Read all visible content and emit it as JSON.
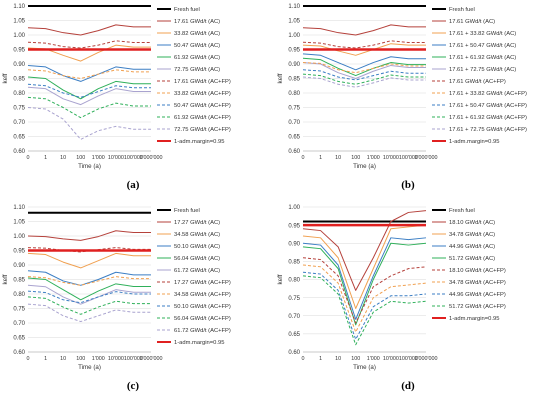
{
  "figure": {
    "panel_labels": [
      "(a)",
      "(b)",
      "(c)",
      "(d)"
    ]
  },
  "chart_data": [
    {
      "type": "line",
      "panel": "(a)",
      "xlabel": "Time (a)",
      "ylabel": "keff",
      "xscale": "log",
      "x_tick_values": [
        0,
        1,
        10,
        100,
        1000,
        10000,
        100000,
        1000000
      ],
      "x_tick_labels": [
        "0",
        "1",
        "10",
        "100",
        "1'000",
        "10'000",
        "100'000",
        "1'000'000"
      ],
      "y_tick_labels": [
        "0.60",
        "0.65",
        "0.70",
        "0.75",
        "0.80",
        "0.85",
        "0.90",
        "0.95",
        "1.00",
        "1.05",
        "1.10"
      ],
      "ylim": [
        0.6,
        1.1
      ],
      "legend_position": "right",
      "x": [
        0,
        1,
        10,
        100,
        1000,
        10000,
        100000,
        1000000
      ],
      "series": [
        {
          "name": "Fresh fuel",
          "color": "#000000",
          "dash": "solid",
          "width": 2,
          "values": [
            1.1,
            1.1,
            1.1,
            1.1,
            1.1,
            1.1,
            1.1,
            1.1
          ]
        },
        {
          "name": "17.61 GWd/t (AC)",
          "color": "#b5413b",
          "dash": "solid",
          "width": 1,
          "values": [
            1.025,
            1.022,
            1.008,
            1.0,
            1.015,
            1.035,
            1.028,
            1.028
          ]
        },
        {
          "name": "33.82 GWd/t (AC)",
          "color": "#f0a050",
          "dash": "solid",
          "width": 1,
          "values": [
            0.955,
            0.952,
            0.93,
            0.91,
            0.94,
            0.965,
            0.958,
            0.958
          ]
        },
        {
          "name": "50.47 GWd/t (AC)",
          "color": "#3b7ec4",
          "dash": "solid",
          "width": 1,
          "values": [
            0.895,
            0.89,
            0.86,
            0.84,
            0.865,
            0.89,
            0.882,
            0.882
          ]
        },
        {
          "name": "61.92 GWd/t (AC)",
          "color": "#2fb05a",
          "dash": "solid",
          "width": 1,
          "values": [
            0.855,
            0.85,
            0.81,
            0.78,
            0.815,
            0.84,
            0.832,
            0.832
          ]
        },
        {
          "name": "72.75 GWd/t (AC)",
          "color": "#a9a3cf",
          "dash": "solid",
          "width": 1,
          "values": [
            0.82,
            0.815,
            0.78,
            0.76,
            0.79,
            0.815,
            0.805,
            0.805
          ]
        },
        {
          "name": "17.61 GWd/t (AC+FP)",
          "color": "#b5413b",
          "dash": "dashed",
          "width": 1,
          "values": [
            0.975,
            0.972,
            0.96,
            0.955,
            0.965,
            0.98,
            0.974,
            0.974
          ]
        },
        {
          "name": "33.82 GWd/t (AC+FP)",
          "color": "#f0a050",
          "dash": "dashed",
          "width": 1,
          "values": [
            0.88,
            0.876,
            0.86,
            0.85,
            0.865,
            0.88,
            0.873,
            0.873
          ]
        },
        {
          "name": "50.47 GWd/t (AC+FP)",
          "color": "#3b7ec4",
          "dash": "dashed",
          "width": 1,
          "values": [
            0.83,
            0.825,
            0.8,
            0.785,
            0.805,
            0.825,
            0.818,
            0.818
          ]
        },
        {
          "name": "61.92 GWd/t (AC+FP)",
          "color": "#2fb05a",
          "dash": "dashed",
          "width": 1,
          "values": [
            0.785,
            0.78,
            0.75,
            0.715,
            0.745,
            0.765,
            0.755,
            0.755
          ]
        },
        {
          "name": "72.75 GWd/t (AC+FP)",
          "color": "#a9a3cf",
          "dash": "dashed",
          "width": 1,
          "values": [
            0.75,
            0.745,
            0.71,
            0.64,
            0.67,
            0.685,
            0.675,
            0.675
          ]
        },
        {
          "name": "1-adm.margin=0.95",
          "color": "#e02020",
          "dash": "solid",
          "width": 2.5,
          "values": [
            0.95,
            0.95,
            0.95,
            0.95,
            0.95,
            0.95,
            0.95,
            0.95
          ]
        }
      ]
    },
    {
      "type": "line",
      "panel": "(b)",
      "xlabel": "Time (a)",
      "ylabel": "keff",
      "xscale": "log",
      "x_tick_values": [
        0,
        1,
        10,
        100,
        1000,
        10000,
        100000,
        1000000
      ],
      "x_tick_labels": [
        "0",
        "1",
        "10",
        "100",
        "1'000",
        "10'000",
        "100'000",
        "1'000'000"
      ],
      "y_tick_labels": [
        "0.60",
        "0.65",
        "0.70",
        "0.75",
        "0.80",
        "0.85",
        "0.90",
        "0.95",
        "1.00",
        "1.05",
        "1.10"
      ],
      "ylim": [
        0.6,
        1.1
      ],
      "legend_position": "right",
      "x": [
        0,
        1,
        10,
        100,
        1000,
        10000,
        100000,
        1000000
      ],
      "series": [
        {
          "name": "Fresh fuel",
          "color": "#000000",
          "dash": "solid",
          "width": 2,
          "values": [
            1.1,
            1.1,
            1.1,
            1.1,
            1.1,
            1.1,
            1.1,
            1.1
          ]
        },
        {
          "name": "17.61 GWd/t (AC)",
          "color": "#b5413b",
          "dash": "solid",
          "width": 1,
          "values": [
            1.025,
            1.022,
            1.008,
            1.0,
            1.015,
            1.035,
            1.028,
            1.028
          ]
        },
        {
          "name": "17.61 + 33.82 GWd/t (AC)",
          "color": "#f0a050",
          "dash": "solid",
          "width": 1,
          "values": [
            0.965,
            0.962,
            0.945,
            0.93,
            0.95,
            0.97,
            0.965,
            0.965
          ]
        },
        {
          "name": "17.61 + 50.47 GWd/t (AC)",
          "color": "#3b7ec4",
          "dash": "solid",
          "width": 1,
          "values": [
            0.935,
            0.93,
            0.905,
            0.88,
            0.905,
            0.925,
            0.918,
            0.918
          ]
        },
        {
          "name": "17.61 + 61.92 GWd/t (AC)",
          "color": "#2fb05a",
          "dash": "solid",
          "width": 1,
          "values": [
            0.92,
            0.915,
            0.885,
            0.86,
            0.885,
            0.905,
            0.898,
            0.898
          ]
        },
        {
          "name": "17.61 + 72.75 GWd/t (AC)",
          "color": "#a9a3cf",
          "dash": "solid",
          "width": 1,
          "values": [
            0.905,
            0.9,
            0.87,
            0.85,
            0.875,
            0.895,
            0.888,
            0.888
          ]
        },
        {
          "name": "17.61 GWd/t (AC+FP)",
          "color": "#b5413b",
          "dash": "dashed",
          "width": 1,
          "values": [
            0.975,
            0.972,
            0.96,
            0.955,
            0.965,
            0.98,
            0.974,
            0.974
          ]
        },
        {
          "name": "17.61 + 33.82 GWd/t (AC+FP)",
          "color": "#f0a050",
          "dash": "dashed",
          "width": 1,
          "values": [
            0.905,
            0.902,
            0.88,
            0.87,
            0.885,
            0.9,
            0.893,
            0.893
          ]
        },
        {
          "name": "17.61 + 50.47 GWd/t (AC+FP)",
          "color": "#3b7ec4",
          "dash": "dashed",
          "width": 1,
          "values": [
            0.88,
            0.876,
            0.855,
            0.845,
            0.86,
            0.875,
            0.868,
            0.868
          ]
        },
        {
          "name": "17.61 + 61.92 GWd/t (AC+FP)",
          "color": "#2fb05a",
          "dash": "dashed",
          "width": 1,
          "values": [
            0.865,
            0.86,
            0.84,
            0.83,
            0.845,
            0.862,
            0.855,
            0.855
          ]
        },
        {
          "name": "17.61 + 72.75 GWd/t (AC+FP)",
          "color": "#a9a3cf",
          "dash": "dashed",
          "width": 1,
          "values": [
            0.855,
            0.85,
            0.83,
            0.82,
            0.835,
            0.852,
            0.845,
            0.845
          ]
        },
        {
          "name": "1-adm.margin=0.95",
          "color": "#e02020",
          "dash": "solid",
          "width": 2.5,
          "values": [
            0.95,
            0.95,
            0.95,
            0.95,
            0.95,
            0.95,
            0.95,
            0.95
          ]
        }
      ]
    },
    {
      "type": "line",
      "panel": "(c)",
      "xlabel": "Time (a)",
      "ylabel": "keff",
      "xscale": "log",
      "x_tick_values": [
        0,
        1,
        10,
        100,
        1000,
        10000,
        100000,
        1000000
      ],
      "x_tick_labels": [
        "0",
        "1",
        "10",
        "100",
        "1'000",
        "10'000",
        "100'000",
        "1'000'000"
      ],
      "y_tick_labels": [
        "0.60",
        "0.65",
        "0.70",
        "0.75",
        "0.80",
        "0.85",
        "0.90",
        "0.95",
        "1.00",
        "1.05",
        "1.10"
      ],
      "ylim": [
        0.6,
        1.1
      ],
      "legend_position": "right",
      "x": [
        0,
        1,
        10,
        100,
        1000,
        10000,
        100000,
        1000000
      ],
      "series": [
        {
          "name": "Fresh fuel",
          "color": "#000000",
          "dash": "solid",
          "width": 2,
          "values": [
            1.08,
            1.08,
            1.08,
            1.08,
            1.08,
            1.08,
            1.08,
            1.08
          ]
        },
        {
          "name": "17.27 GWd/t (AC)",
          "color": "#b5413b",
          "dash": "solid",
          "width": 1,
          "values": [
            1.0,
            0.998,
            0.99,
            0.985,
            0.998,
            1.018,
            1.012,
            1.012
          ]
        },
        {
          "name": "34.58 GWd/t (AC)",
          "color": "#f0a050",
          "dash": "solid",
          "width": 1,
          "values": [
            0.94,
            0.936,
            0.91,
            0.89,
            0.915,
            0.94,
            0.932,
            0.932
          ]
        },
        {
          "name": "50.10 GWd/t (AC)",
          "color": "#3b7ec4",
          "dash": "solid",
          "width": 1,
          "values": [
            0.88,
            0.875,
            0.845,
            0.83,
            0.85,
            0.875,
            0.866,
            0.866
          ]
        },
        {
          "name": "56.04 GWd/t (AC)",
          "color": "#2fb05a",
          "dash": "solid",
          "width": 1,
          "values": [
            0.855,
            0.85,
            0.815,
            0.78,
            0.81,
            0.835,
            0.826,
            0.826
          ]
        },
        {
          "name": "61.72 GWd/t (AC)",
          "color": "#a9a3cf",
          "dash": "solid",
          "width": 1,
          "values": [
            0.83,
            0.825,
            0.79,
            0.765,
            0.79,
            0.815,
            0.806,
            0.806
          ]
        },
        {
          "name": "17.27 GWd/t (AC+FP)",
          "color": "#b5413b",
          "dash": "dashed",
          "width": 1,
          "values": [
            0.96,
            0.958,
            0.95,
            0.945,
            0.953,
            0.96,
            0.954,
            0.954
          ]
        },
        {
          "name": "34.58 GWd/t (AC+FP)",
          "color": "#f0a050",
          "dash": "dashed",
          "width": 1,
          "values": [
            0.86,
            0.856,
            0.84,
            0.83,
            0.845,
            0.86,
            0.853,
            0.853
          ]
        },
        {
          "name": "50.10 GWd/t (AC+FP)",
          "color": "#3b7ec4",
          "dash": "dashed",
          "width": 1,
          "values": [
            0.81,
            0.805,
            0.78,
            0.77,
            0.79,
            0.808,
            0.8,
            0.8
          ]
        },
        {
          "name": "56.04 GWd/t (AC+FP)",
          "color": "#2fb05a",
          "dash": "dashed",
          "width": 1,
          "values": [
            0.79,
            0.785,
            0.755,
            0.73,
            0.755,
            0.775,
            0.767,
            0.767
          ]
        },
        {
          "name": "61.72 GWd/t (AC+FP)",
          "color": "#a9a3cf",
          "dash": "dashed",
          "width": 1,
          "values": [
            0.765,
            0.76,
            0.725,
            0.705,
            0.725,
            0.745,
            0.737,
            0.737
          ]
        },
        {
          "name": "1-adm.margin=0.95",
          "color": "#e02020",
          "dash": "solid",
          "width": 2.5,
          "values": [
            0.95,
            0.95,
            0.95,
            0.95,
            0.95,
            0.95,
            0.95,
            0.95
          ]
        }
      ]
    },
    {
      "type": "line",
      "panel": "(d)",
      "xlabel": "Time (a)",
      "ylabel": "keff",
      "xscale": "log",
      "x_tick_values": [
        0,
        1,
        10,
        100,
        1000,
        10000,
        100000,
        1000000
      ],
      "x_tick_labels": [
        "0",
        "1",
        "10",
        "100",
        "1'000",
        "10'000",
        "100'000",
        "1'000'000"
      ],
      "y_tick_labels": [
        "0.60",
        "0.65",
        "0.70",
        "0.75",
        "0.80",
        "0.85",
        "0.90",
        "0.95",
        "1.00"
      ],
      "ylim": [
        0.6,
        1.0
      ],
      "legend_position": "right",
      "x": [
        0,
        1,
        10,
        100,
        1000,
        10000,
        100000,
        1000000
      ],
      "series": [
        {
          "name": "Fresh fuel",
          "color": "#000000",
          "dash": "solid",
          "width": 2,
          "values": [
            0.96,
            0.96,
            0.96,
            0.96,
            0.96,
            0.96,
            0.96,
            0.96
          ]
        },
        {
          "name": "18.10 GWd/t (AC)",
          "color": "#b5413b",
          "dash": "solid",
          "width": 1,
          "values": [
            0.94,
            0.935,
            0.89,
            0.77,
            0.86,
            0.96,
            0.985,
            0.99
          ]
        },
        {
          "name": "34.78 GWd/t (AC)",
          "color": "#f0a050",
          "dash": "solid",
          "width": 1,
          "values": [
            0.92,
            0.915,
            0.86,
            0.72,
            0.83,
            0.94,
            0.945,
            0.95
          ]
        },
        {
          "name": "44.96 GWd/t (AC)",
          "color": "#3b7ec4",
          "dash": "solid",
          "width": 1,
          "values": [
            0.9,
            0.895,
            0.84,
            0.69,
            0.81,
            0.915,
            0.91,
            0.915
          ]
        },
        {
          "name": "51.72 GWd/t (AC)",
          "color": "#2fb05a",
          "dash": "solid",
          "width": 1,
          "values": [
            0.89,
            0.885,
            0.83,
            0.675,
            0.8,
            0.9,
            0.895,
            0.9
          ]
        },
        {
          "name": "18.10 GWd/t (AC+FP)",
          "color": "#b5413b",
          "dash": "dashed",
          "width": 1,
          "values": [
            0.86,
            0.855,
            0.81,
            0.68,
            0.78,
            0.81,
            0.83,
            0.835
          ]
        },
        {
          "name": "34.78 GWd/t (AC+FP)",
          "color": "#f0a050",
          "dash": "dashed",
          "width": 1,
          "values": [
            0.84,
            0.835,
            0.79,
            0.655,
            0.75,
            0.78,
            0.785,
            0.79
          ]
        },
        {
          "name": "44.96 GWd/t (AC+FP)",
          "color": "#3b7ec4",
          "dash": "dashed",
          "width": 1,
          "values": [
            0.82,
            0.815,
            0.77,
            0.635,
            0.725,
            0.755,
            0.755,
            0.76
          ]
        },
        {
          "name": "51.72 GWd/t (AC+FP)",
          "color": "#2fb05a",
          "dash": "dashed",
          "width": 1,
          "values": [
            0.81,
            0.805,
            0.76,
            0.62,
            0.71,
            0.74,
            0.735,
            0.74
          ]
        },
        {
          "name": "1-adm.margin=0.95",
          "color": "#e02020",
          "dash": "solid",
          "width": 2.5,
          "values": [
            0.95,
            0.95,
            0.95,
            0.95,
            0.95,
            0.95,
            0.95,
            0.95
          ]
        }
      ]
    }
  ]
}
